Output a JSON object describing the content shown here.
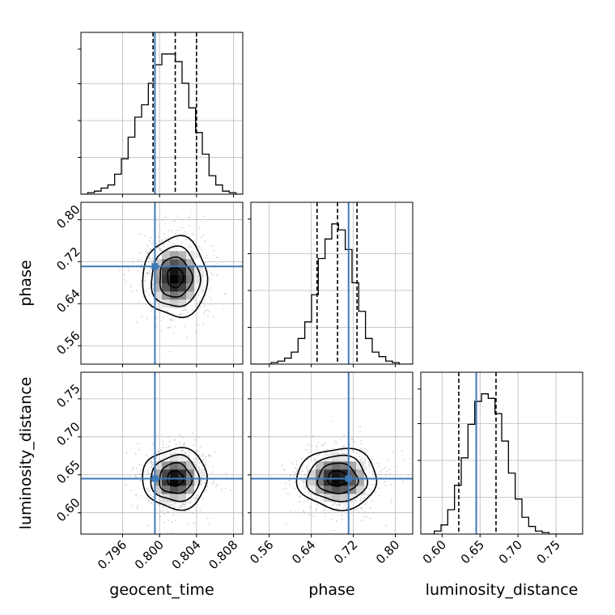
{
  "chart_data": {
    "type": "corner",
    "parameters": [
      "geocent_time",
      "phase",
      "luminosity_distance"
    ],
    "axis_labels": {
      "geocent_time": "geocent_time",
      "phase": "phase",
      "luminosity_distance": "luminosity_distance"
    },
    "ticks": {
      "geocent_time": [
        "0.796",
        "0.800",
        "0.804",
        "0.808"
      ],
      "phase": [
        "0.56",
        "0.64",
        "0.72",
        "0.80"
      ],
      "luminosity_distance": [
        "0.60",
        "0.65",
        "0.70",
        "0.75"
      ]
    },
    "ranges": {
      "geocent_time": [
        0.7915,
        0.809
      ],
      "phase": [
        0.525,
        0.833
      ],
      "luminosity_distance": [
        0.572,
        0.785
      ]
    },
    "truths": {
      "geocent_time": 0.7995,
      "phase": 0.711,
      "luminosity_distance": 0.645
    },
    "quantiles": {
      "geocent_time": [
        0.7993,
        0.8017,
        0.804
      ],
      "phase": [
        0.651,
        0.69,
        0.727
      ],
      "luminosity_distance": [
        0.622,
        0.645,
        0.671
      ]
    },
    "histograms_1d": {
      "geocent_time": {
        "edges_range": [
          0.7915,
          0.809
        ],
        "counts": [
          0,
          1,
          2,
          4,
          6,
          13,
          23,
          37,
          50,
          58,
          72,
          84,
          91,
          91,
          86,
          72,
          56,
          40,
          26,
          12,
          6,
          2,
          1,
          0
        ]
      },
      "phase": {
        "edges_range": [
          0.525,
          0.833
        ],
        "counts": [
          0,
          0,
          0,
          1,
          2,
          4,
          8,
          17,
          28,
          46,
          70,
          83,
          93,
          89,
          76,
          54,
          35,
          17,
          8,
          5,
          2,
          1,
          0,
          0
        ]
      },
      "luminosity_distance": {
        "edges_range": [
          0.572,
          0.785
        ],
        "counts": [
          0,
          0,
          2,
          6,
          16,
          32,
          50,
          72,
          87,
          92,
          89,
          79,
          61,
          40,
          23,
          11,
          5,
          2,
          1,
          0,
          0,
          0,
          0,
          0
        ]
      }
    },
    "density_2d": [
      {
        "x": "geocent_time",
        "y": "phase",
        "center": [
          0.8017,
          0.69
        ],
        "sigma": [
          0.00175,
          0.038
        ]
      },
      {
        "x": "geocent_time",
        "y": "luminosity_distance",
        "center": [
          0.8017,
          0.645
        ],
        "sigma": [
          0.00175,
          0.02
        ]
      },
      {
        "x": "phase",
        "y": "luminosity_distance",
        "center": [
          0.69,
          0.645
        ],
        "sigma": [
          0.038,
          0.02
        ]
      }
    ],
    "colors": {
      "truth": "#3d7ab8",
      "histogram": "#000000",
      "contour": "#000000",
      "grid": "#b8b8b8",
      "scatter": "#9a9a9a"
    },
    "grid": true
  }
}
